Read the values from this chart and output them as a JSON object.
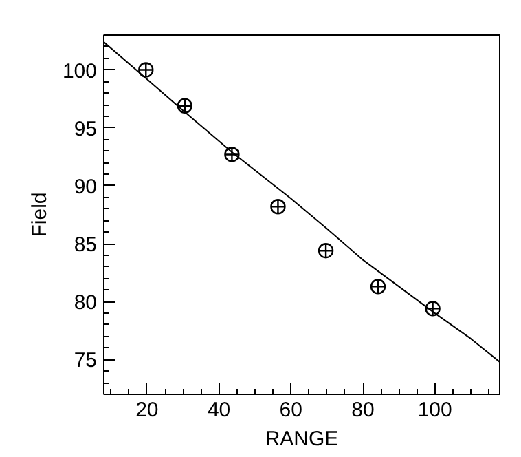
{
  "chart_data": {
    "type": "scatter",
    "xlabel": "RANGE",
    "ylabel": "Field",
    "grid": false,
    "xlim": [
      8,
      118
    ],
    "ylim": [
      72,
      103
    ],
    "xticks": [
      20,
      40,
      60,
      80,
      100
    ],
    "yticks": [
      75,
      80,
      85,
      90,
      95,
      100
    ],
    "series": [
      {
        "marker": "circle",
        "color": "#000000",
        "x": [
          19.7,
          30.5,
          43.6,
          56.4,
          69.7,
          84.2,
          99.4
        ],
        "values": [
          100.0,
          96.9,
          92.7,
          88.2,
          84.4,
          81.3,
          79.4
        ]
      },
      {
        "type": "line",
        "marker": "none",
        "color": "#000000",
        "line_style": "solid",
        "x": [
          8,
          20,
          30,
          43.6,
          60,
          70,
          80,
          90,
          100,
          110,
          118
        ],
        "values": [
          102.4,
          99.2,
          96.5,
          92.9,
          88.9,
          86.3,
          83.6,
          81.3,
          79.0,
          76.8,
          74.8
        ]
      }
    ]
  }
}
